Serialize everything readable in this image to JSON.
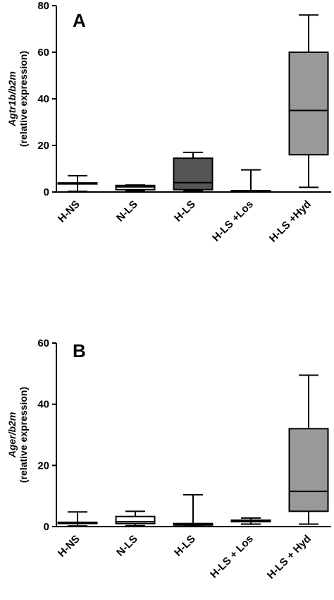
{
  "chart_data": [
    {
      "type": "box",
      "panel": "A",
      "ylabel_italic": "Agtr1b/b2m",
      "ylabel": "(relative expression)",
      "ylim": [
        0,
        80
      ],
      "yticks": [
        0,
        20,
        40,
        60,
        80
      ],
      "categories": [
        "H-NS",
        "N-LS",
        "H-LS",
        "H-LS +Los",
        "H-LS +Hyd"
      ],
      "boxes": [
        {
          "min": 0.3,
          "q1": 3.7,
          "median": 3.8,
          "q3": 3.9,
          "max": 7.0,
          "fill": "#ffffff"
        },
        {
          "min": 0.5,
          "q1": 1.0,
          "median": 2.2,
          "q3": 2.8,
          "max": 3.0,
          "fill": "#ffffff"
        },
        {
          "min": 0.6,
          "q1": 1.0,
          "median": 4.0,
          "q3": 14.5,
          "max": 17.0,
          "fill": "#555555"
        },
        {
          "min": 0.1,
          "q1": 0.2,
          "median": 0.4,
          "q3": 0.6,
          "max": 9.5,
          "fill": "#ffffff"
        },
        {
          "min": 2.0,
          "q1": 16.0,
          "median": 35.0,
          "q3": 60.0,
          "max": 76.0,
          "fill": "#999999"
        }
      ]
    },
    {
      "type": "box",
      "panel": "B",
      "ylabel_italic": "Ager/b2m",
      "ylabel": "(relative expression)",
      "ylim": [
        0,
        60
      ],
      "yticks": [
        0,
        20,
        40,
        60
      ],
      "categories": [
        "H-NS",
        "N-LS",
        "H-LS",
        "H-LS + Los",
        "H-LS + Hyd"
      ],
      "boxes": [
        {
          "min": 0.2,
          "q1": 1.0,
          "median": 1.2,
          "q3": 1.4,
          "max": 4.8,
          "fill": "#ffffff"
        },
        {
          "min": 0.3,
          "q1": 1.0,
          "median": 1.6,
          "q3": 3.3,
          "max": 5.0,
          "fill": "#ffffff"
        },
        {
          "min": 0.1,
          "q1": 0.5,
          "median": 0.8,
          "q3": 1.0,
          "max": 10.4,
          "fill": "#ffffff"
        },
        {
          "min": 0.8,
          "q1": 1.6,
          "median": 1.8,
          "q3": 2.1,
          "max": 2.8,
          "fill": "#ffffff"
        },
        {
          "min": 0.8,
          "q1": 5.0,
          "median": 11.5,
          "q3": 32.0,
          "max": 49.5,
          "fill": "#999999"
        }
      ]
    }
  ]
}
